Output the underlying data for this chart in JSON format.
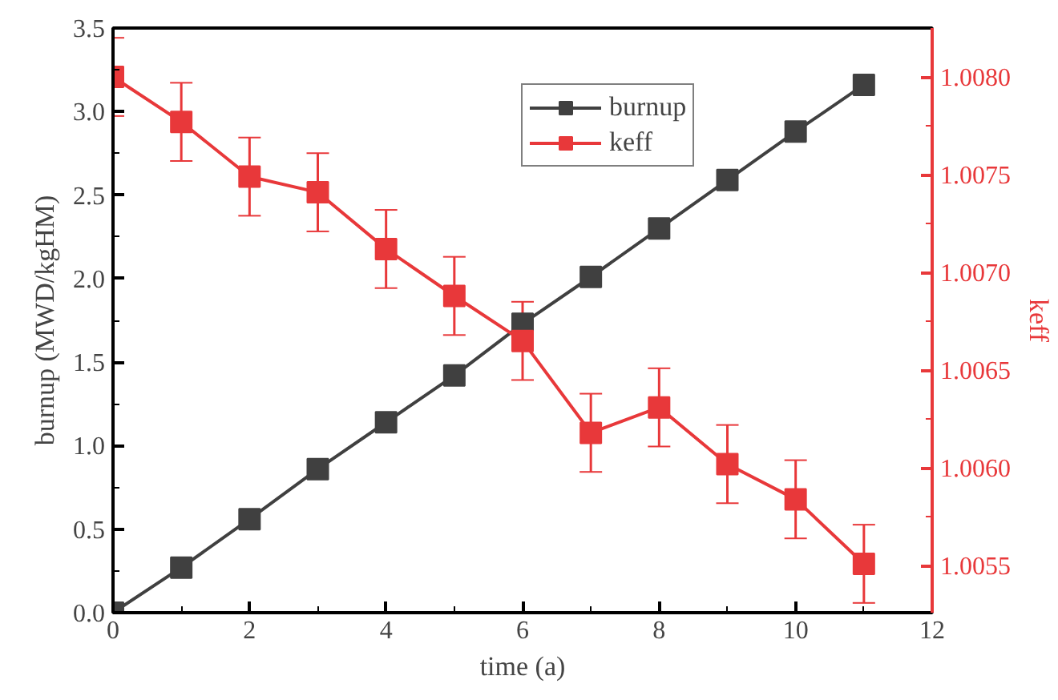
{
  "chart_data": {
    "type": "line",
    "xlabel": "time (a)",
    "ylabel": "burnup (MWD/kgHM)",
    "y2label": "keff",
    "x": [
      0,
      1,
      2,
      3,
      4,
      5,
      6,
      7,
      8,
      9,
      10,
      11
    ],
    "series": [
      {
        "name": "burnup",
        "color": "#404040",
        "values": [
          0,
          0.27,
          0.56,
          0.86,
          1.14,
          1.42,
          1.73,
          2.01,
          2.3,
          2.59,
          2.88,
          3.16
        ]
      },
      {
        "name": "keff",
        "color": "#e8383a",
        "axis": "y2",
        "values": [
          1.008,
          1.00777,
          1.00749,
          1.00741,
          1.00712,
          1.00688,
          1.00665,
          1.00618,
          1.00631,
          1.00602,
          1.00584,
          1.00551
        ],
        "errors": [
          0.0002,
          0.0002,
          0.0002,
          0.0002,
          0.0002,
          0.0002,
          0.0002,
          0.0002,
          0.0002,
          0.0002,
          0.0002,
          0.0002
        ]
      }
    ],
    "xlim": [
      0,
      12
    ],
    "xticks": [
      0,
      2,
      4,
      6,
      8,
      10,
      12
    ],
    "ylim": [
      0,
      3.5
    ],
    "yticks": [
      {
        "value": 0,
        "label": "0.0"
      },
      {
        "value": 0.5,
        "label": "0.5"
      },
      {
        "value": 1,
        "label": "1.0"
      },
      {
        "value": 1.5,
        "label": "1.5"
      },
      {
        "value": 2,
        "label": "2.0"
      },
      {
        "value": 2.5,
        "label": "2.5"
      },
      {
        "value": 3,
        "label": "3.0"
      },
      {
        "value": 3.5,
        "label": "3.5"
      }
    ],
    "y2lim": [
      1.00526,
      1.00825
    ],
    "y2ticks": [
      {
        "value": 1.0055,
        "label": "1.0055"
      },
      {
        "value": 1.006,
        "label": "1.0060"
      },
      {
        "value": 1.0065,
        "label": "1.0065"
      },
      {
        "value": 1.007,
        "label": "1.0070"
      },
      {
        "value": 1.0075,
        "label": "1.0075"
      },
      {
        "value": 1.008,
        "label": "1.0080"
      }
    ],
    "grid": false,
    "legend": "top right",
    "marker": "square",
    "line_style": "solid"
  }
}
